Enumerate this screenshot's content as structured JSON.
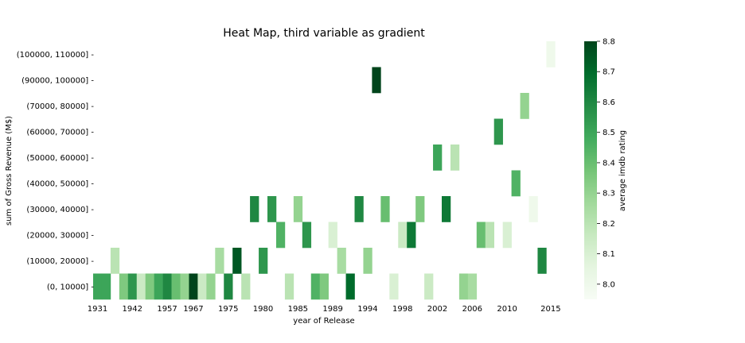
{
  "chart_data": {
    "type": "heatmap",
    "title": "Heat Map, third variable as gradient",
    "xlabel": "year of Release",
    "ylabel": "sum of Gross Revenue (M$)",
    "x_tick_labels": [
      "1931",
      "1942",
      "1957",
      "1967",
      "1975",
      "1980",
      "1985",
      "1989",
      "1994",
      "1998",
      "2002",
      "2006",
      "2010",
      "2015"
    ],
    "y_categories": [
      "(0, 10000]",
      "(10000, 20000]",
      "(20000, 30000]",
      "(30000, 40000]",
      "(40000, 50000]",
      "(50000, 60000]",
      "(60000, 70000]",
      "(70000, 80000]",
      "(90000, 100000]",
      "(100000, 110000]"
    ],
    "colorbar": {
      "label": "average imdb rating",
      "min": 7.95,
      "max": 8.8,
      "ticks": [
        "8.0",
        "8.1",
        "8.2",
        "8.3",
        "8.4",
        "8.5",
        "8.6",
        "8.7",
        "8.8"
      ],
      "colormap": "Greens"
    },
    "cells": [
      {
        "col": 0,
        "row": 0,
        "value": 8.5
      },
      {
        "col": 1,
        "row": 0,
        "value": 8.5
      },
      {
        "col": 3,
        "row": 0,
        "value": 8.35
      },
      {
        "col": 4,
        "row": 0,
        "value": 8.55
      },
      {
        "col": 5,
        "row": 0,
        "value": 8.15
      },
      {
        "col": 6,
        "row": 0,
        "value": 8.35
      },
      {
        "col": 7,
        "row": 0,
        "value": 8.5
      },
      {
        "col": 8,
        "row": 0,
        "value": 8.6
      },
      {
        "col": 9,
        "row": 0,
        "value": 8.4
      },
      {
        "col": 10,
        "row": 0,
        "value": 8.3
      },
      {
        "col": 11,
        "row": 0,
        "value": 8.8
      },
      {
        "col": 12,
        "row": 0,
        "value": 8.15
      },
      {
        "col": 13,
        "row": 0,
        "value": 8.3
      },
      {
        "col": 15,
        "row": 0,
        "value": 8.6
      },
      {
        "col": 17,
        "row": 0,
        "value": 8.2
      },
      {
        "col": 22,
        "row": 0,
        "value": 8.2
      },
      {
        "col": 25,
        "row": 0,
        "value": 8.45
      },
      {
        "col": 26,
        "row": 0,
        "value": 8.35
      },
      {
        "col": 29,
        "row": 0,
        "value": 8.7
      },
      {
        "col": 34,
        "row": 0,
        "value": 8.1
      },
      {
        "col": 38,
        "row": 0,
        "value": 8.15
      },
      {
        "col": 42,
        "row": 0,
        "value": 8.3
      },
      {
        "col": 43,
        "row": 0,
        "value": 8.25
      },
      {
        "col": 2,
        "row": 1,
        "value": 8.2
      },
      {
        "col": 14,
        "row": 1,
        "value": 8.25
      },
      {
        "col": 16,
        "row": 1,
        "value": 8.75
      },
      {
        "col": 19,
        "row": 1,
        "value": 8.55
      },
      {
        "col": 28,
        "row": 1,
        "value": 8.25
      },
      {
        "col": 31,
        "row": 1,
        "value": 8.3
      },
      {
        "col": 51,
        "row": 1,
        "value": 8.6
      },
      {
        "col": 21,
        "row": 2,
        "value": 8.45
      },
      {
        "col": 24,
        "row": 2,
        "value": 8.55
      },
      {
        "col": 27,
        "row": 2,
        "value": 8.1
      },
      {
        "col": 35,
        "row": 2,
        "value": 8.15
      },
      {
        "col": 36,
        "row": 2,
        "value": 8.65
      },
      {
        "col": 44,
        "row": 2,
        "value": 8.4
      },
      {
        "col": 45,
        "row": 2,
        "value": 8.2
      },
      {
        "col": 47,
        "row": 2,
        "value": 8.1
      },
      {
        "col": 18,
        "row": 3,
        "value": 8.6
      },
      {
        "col": 20,
        "row": 3,
        "value": 8.55
      },
      {
        "col": 23,
        "row": 3,
        "value": 8.3
      },
      {
        "col": 30,
        "row": 3,
        "value": 8.6
      },
      {
        "col": 33,
        "row": 3,
        "value": 8.4
      },
      {
        "col": 37,
        "row": 3,
        "value": 8.35
      },
      {
        "col": 40,
        "row": 3,
        "value": 8.65
      },
      {
        "col": 50,
        "row": 3,
        "value": 8.0
      },
      {
        "col": 48,
        "row": 4,
        "value": 8.45
      },
      {
        "col": 39,
        "row": 5,
        "value": 8.5
      },
      {
        "col": 41,
        "row": 5,
        "value": 8.2
      },
      {
        "col": 46,
        "row": 6,
        "value": 8.55
      },
      {
        "col": 49,
        "row": 7,
        "value": 8.3
      },
      {
        "col": 32,
        "row": 8,
        "value": 8.8
      },
      {
        "col": 52,
        "row": 9,
        "value": 8.0
      }
    ]
  }
}
